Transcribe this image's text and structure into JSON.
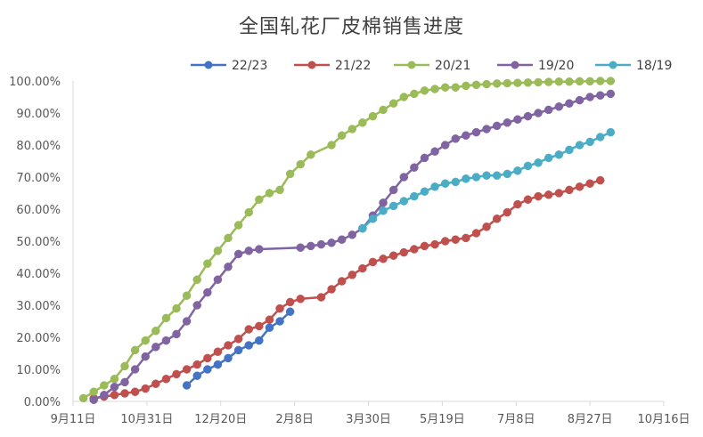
{
  "chart_data": {
    "type": "line",
    "title": "全国轧花厂皮棉销售进度",
    "xlabel": "",
    "ylabel": "",
    "x_ticks": [
      "9月11日",
      "10月31日",
      "12月20日",
      "2月8日",
      "3月30日",
      "5月19日",
      "7月8日",
      "8月27日",
      "10月16日"
    ],
    "y_ticks": [
      "0.00%",
      "10.00%",
      "20.00%",
      "30.00%",
      "40.00%",
      "50.00%",
      "60.00%",
      "70.00%",
      "80.00%",
      "90.00%",
      "100.00%"
    ],
    "ylim": [
      0,
      100
    ],
    "x_unit": "days since Sep 11",
    "xlim": [
      0,
      400
    ],
    "legend_position": "top",
    "grid": false,
    "series": [
      {
        "name": "22/23",
        "color": "#4472C4",
        "x": [
          77,
          84,
          91,
          98,
          105,
          112,
          119,
          126,
          133,
          140,
          147
        ],
        "y": [
          5.0,
          8.0,
          10.0,
          11.5,
          13.5,
          16.0,
          17.5,
          19.0,
          23.0,
          25.0,
          28.0
        ]
      },
      {
        "name": "21/22",
        "color": "#C0504D",
        "x": [
          14,
          21,
          28,
          35,
          42,
          49,
          56,
          63,
          70,
          77,
          84,
          91,
          98,
          105,
          112,
          119,
          126,
          133,
          140,
          147,
          154,
          168,
          175,
          182,
          189,
          196,
          203,
          210,
          217,
          224,
          231,
          238,
          245,
          252,
          259,
          266,
          273,
          280,
          287,
          294,
          301,
          308,
          315,
          322,
          329,
          336,
          343,
          350,
          357
        ],
        "y": [
          1.0,
          1.5,
          2.0,
          2.5,
          3.0,
          4.0,
          5.5,
          7.0,
          8.5,
          10.0,
          11.5,
          13.5,
          15.5,
          17.5,
          19.5,
          22.5,
          23.5,
          25.5,
          29.0,
          31.0,
          32.0,
          32.5,
          35.0,
          37.5,
          39.5,
          41.5,
          43.5,
          44.5,
          45.5,
          46.5,
          47.5,
          48.5,
          49.0,
          50.0,
          50.5,
          51.0,
          52.5,
          54.5,
          57.0,
          59.0,
          61.5,
          63.0,
          64.0,
          64.5,
          65.0,
          66.0,
          67.0,
          68.0,
          69.0
        ]
      },
      {
        "name": "20/21",
        "color": "#9BBB59",
        "x": [
          7,
          14,
          21,
          28,
          35,
          42,
          49,
          56,
          63,
          70,
          77,
          84,
          91,
          98,
          105,
          112,
          119,
          126,
          133,
          140,
          147,
          154,
          161,
          175,
          182,
          189,
          196,
          203,
          210,
          217,
          224,
          231,
          238,
          245,
          252,
          259,
          266,
          273,
          280,
          287,
          294,
          301,
          308,
          315,
          322,
          329,
          336,
          343,
          350,
          357,
          364
        ],
        "y": [
          1.0,
          3.0,
          5.0,
          7.0,
          11.0,
          16.0,
          19.0,
          22.0,
          26.0,
          29.0,
          33.0,
          38.0,
          43.0,
          47.0,
          51.0,
          55.0,
          59.0,
          63.0,
          65.0,
          66.0,
          71.0,
          74.0,
          77.0,
          80.0,
          83.0,
          85.0,
          87.0,
          89.0,
          91.0,
          93.0,
          95.0,
          96.0,
          97.0,
          97.5,
          98.0,
          98.0,
          98.5,
          98.8,
          99.0,
          99.2,
          99.3,
          99.4,
          99.5,
          99.6,
          99.7,
          99.8,
          99.8,
          99.9,
          99.9,
          100.0,
          100.0
        ]
      },
      {
        "name": "19/20",
        "color": "#8064A2",
        "x": [
          14,
          21,
          28,
          35,
          42,
          49,
          56,
          63,
          70,
          77,
          84,
          91,
          98,
          105,
          112,
          119,
          126,
          154,
          161,
          168,
          175,
          182,
          189,
          196,
          203,
          210,
          217,
          224,
          231,
          238,
          245,
          252,
          259,
          266,
          273,
          280,
          287,
          294,
          301,
          308,
          315,
          322,
          329,
          336,
          343,
          350,
          357,
          364
        ],
        "y": [
          0.5,
          2.0,
          4.5,
          6.0,
          10.0,
          14.0,
          17.0,
          19.0,
          21.0,
          25.0,
          30.0,
          34.0,
          38.0,
          42.0,
          46.0,
          47.0,
          47.5,
          48.0,
          48.5,
          49.0,
          49.5,
          50.5,
          52.0,
          54.0,
          58.0,
          62.0,
          66.0,
          70.0,
          73.0,
          76.0,
          78.0,
          80.0,
          82.0,
          83.0,
          84.0,
          85.0,
          86.0,
          87.0,
          88.0,
          89.0,
          90.0,
          91.0,
          92.0,
          93.0,
          94.0,
          95.0,
          95.5,
          96.0
        ]
      },
      {
        "name": "18/19",
        "color": "#4BACC6",
        "x": [
          196,
          203,
          210,
          217,
          224,
          231,
          238,
          245,
          252,
          259,
          266,
          273,
          280,
          287,
          294,
          301,
          308,
          315,
          322,
          329,
          336,
          343,
          350,
          357,
          364
        ],
        "y": [
          54.0,
          57.0,
          59.5,
          61.0,
          62.5,
          64.0,
          65.5,
          67.0,
          68.0,
          68.5,
          69.5,
          70.0,
          70.5,
          70.5,
          71.0,
          72.0,
          73.5,
          74.5,
          76.0,
          77.0,
          78.5,
          80.0,
          81.0,
          82.5,
          84.0
        ]
      }
    ]
  }
}
